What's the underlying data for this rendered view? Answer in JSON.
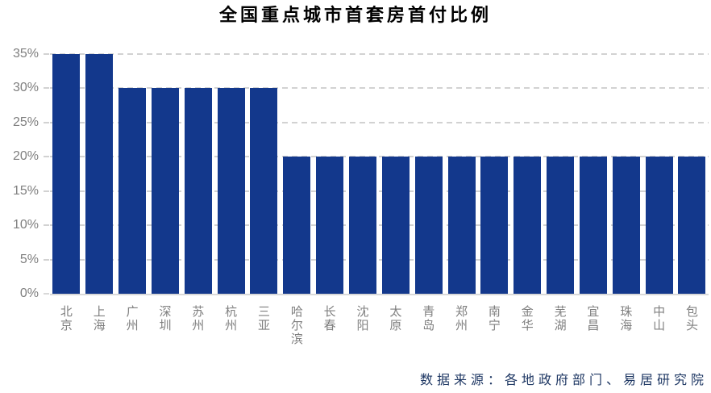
{
  "chart_data": {
    "type": "bar",
    "title": "全国重点城市首套房首付比例",
    "categories": [
      "北京",
      "上海",
      "广州",
      "深圳",
      "苏州",
      "杭州",
      "三亚",
      "哈尔滨",
      "长春",
      "沈阳",
      "太原",
      "青岛",
      "郑州",
      "南宁",
      "金华",
      "芜湖",
      "宜昌",
      "珠海",
      "中山",
      "包头"
    ],
    "values": [
      35,
      35,
      30,
      30,
      30,
      30,
      30,
      20,
      20,
      20,
      20,
      20,
      20,
      20,
      20,
      20,
      20,
      20,
      20,
      20
    ],
    "unit": "%",
    "ylim": [
      0,
      35
    ],
    "ytick_step": 5,
    "yticks": [
      "35%",
      "30%",
      "25%",
      "20%",
      "15%",
      "10%",
      "5%",
      "0%"
    ],
    "grid": "horizontal-dashed",
    "legend": "none",
    "source": "数据来源：各地政府部门、易居研究院",
    "colors": {
      "bar": "#13388c",
      "grid": "#d2d2d2",
      "axis": "#d9d9d9",
      "tick_label": "#7f7f7f",
      "title": "#000000",
      "source": "#1f3864",
      "background": "#ffffff"
    }
  }
}
